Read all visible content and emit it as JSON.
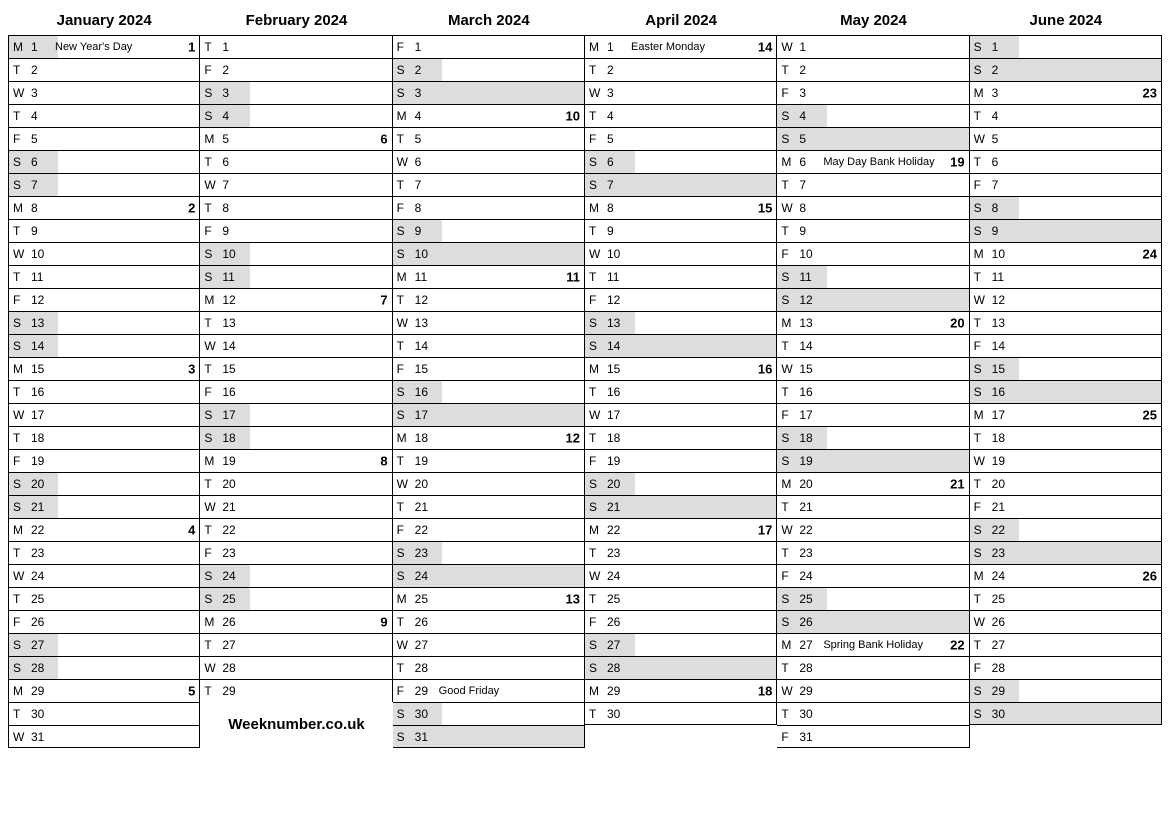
{
  "colors": {
    "weekend_bg": "#ddd",
    "border": "#000",
    "text": "#000"
  },
  "footer": "Weeknumber.co.uk",
  "weekend_partial_width_pct": 26,
  "months": [
    {
      "title": "January 2024",
      "days": [
        {
          "dow": "M",
          "n": 1,
          "holiday": "New Year's Day",
          "week": 1,
          "weekend": "partial"
        },
        {
          "dow": "T",
          "n": 2
        },
        {
          "dow": "W",
          "n": 3
        },
        {
          "dow": "T",
          "n": 4
        },
        {
          "dow": "F",
          "n": 5
        },
        {
          "dow": "S",
          "n": 6,
          "weekend": "partial"
        },
        {
          "dow": "S",
          "n": 7,
          "weekend": "partial"
        },
        {
          "dow": "M",
          "n": 8,
          "week": 2
        },
        {
          "dow": "T",
          "n": 9
        },
        {
          "dow": "W",
          "n": 10
        },
        {
          "dow": "T",
          "n": 11
        },
        {
          "dow": "F",
          "n": 12
        },
        {
          "dow": "S",
          "n": 13,
          "weekend": "partial"
        },
        {
          "dow": "S",
          "n": 14,
          "weekend": "partial"
        },
        {
          "dow": "M",
          "n": 15,
          "week": 3
        },
        {
          "dow": "T",
          "n": 16
        },
        {
          "dow": "W",
          "n": 17
        },
        {
          "dow": "T",
          "n": 18
        },
        {
          "dow": "F",
          "n": 19
        },
        {
          "dow": "S",
          "n": 20,
          "weekend": "partial"
        },
        {
          "dow": "S",
          "n": 21,
          "weekend": "partial"
        },
        {
          "dow": "M",
          "n": 22,
          "week": 4
        },
        {
          "dow": "T",
          "n": 23
        },
        {
          "dow": "W",
          "n": 24
        },
        {
          "dow": "T",
          "n": 25
        },
        {
          "dow": "F",
          "n": 26
        },
        {
          "dow": "S",
          "n": 27,
          "weekend": "partial"
        },
        {
          "dow": "S",
          "n": 28,
          "weekend": "partial"
        },
        {
          "dow": "M",
          "n": 29,
          "week": 5
        },
        {
          "dow": "T",
          "n": 30
        },
        {
          "dow": "W",
          "n": 31
        }
      ]
    },
    {
      "title": "February 2024",
      "days": [
        {
          "dow": "T",
          "n": 1
        },
        {
          "dow": "F",
          "n": 2
        },
        {
          "dow": "S",
          "n": 3,
          "weekend": "partial"
        },
        {
          "dow": "S",
          "n": 4,
          "weekend": "partial"
        },
        {
          "dow": "M",
          "n": 5,
          "week": 6
        },
        {
          "dow": "T",
          "n": 6
        },
        {
          "dow": "W",
          "n": 7
        },
        {
          "dow": "T",
          "n": 8
        },
        {
          "dow": "F",
          "n": 9
        },
        {
          "dow": "S",
          "n": 10,
          "weekend": "partial"
        },
        {
          "dow": "S",
          "n": 11,
          "weekend": "partial"
        },
        {
          "dow": "M",
          "n": 12,
          "week": 7
        },
        {
          "dow": "T",
          "n": 13
        },
        {
          "dow": "W",
          "n": 14
        },
        {
          "dow": "T",
          "n": 15
        },
        {
          "dow": "F",
          "n": 16
        },
        {
          "dow": "S",
          "n": 17,
          "weekend": "partial"
        },
        {
          "dow": "S",
          "n": 18,
          "weekend": "partial"
        },
        {
          "dow": "M",
          "n": 19,
          "week": 8
        },
        {
          "dow": "T",
          "n": 20
        },
        {
          "dow": "W",
          "n": 21
        },
        {
          "dow": "T",
          "n": 22
        },
        {
          "dow": "F",
          "n": 23
        },
        {
          "dow": "S",
          "n": 24,
          "weekend": "partial"
        },
        {
          "dow": "S",
          "n": 25,
          "weekend": "partial"
        },
        {
          "dow": "M",
          "n": 26,
          "week": 9
        },
        {
          "dow": "T",
          "n": 27
        },
        {
          "dow": "W",
          "n": 28
        },
        {
          "dow": "T",
          "n": 29
        }
      ],
      "footer": true
    },
    {
      "title": "March 2024",
      "days": [
        {
          "dow": "F",
          "n": 1
        },
        {
          "dow": "S",
          "n": 2,
          "weekend": "partial"
        },
        {
          "dow": "S",
          "n": 3,
          "weekend": "full"
        },
        {
          "dow": "M",
          "n": 4,
          "week": 10
        },
        {
          "dow": "T",
          "n": 5
        },
        {
          "dow": "W",
          "n": 6
        },
        {
          "dow": "T",
          "n": 7
        },
        {
          "dow": "F",
          "n": 8
        },
        {
          "dow": "S",
          "n": 9,
          "weekend": "partial"
        },
        {
          "dow": "S",
          "n": 10,
          "weekend": "full"
        },
        {
          "dow": "M",
          "n": 11,
          "week": 11
        },
        {
          "dow": "T",
          "n": 12
        },
        {
          "dow": "W",
          "n": 13
        },
        {
          "dow": "T",
          "n": 14
        },
        {
          "dow": "F",
          "n": 15
        },
        {
          "dow": "S",
          "n": 16,
          "weekend": "partial"
        },
        {
          "dow": "S",
          "n": 17,
          "weekend": "full"
        },
        {
          "dow": "M",
          "n": 18,
          "week": 12
        },
        {
          "dow": "T",
          "n": 19
        },
        {
          "dow": "W",
          "n": 20
        },
        {
          "dow": "T",
          "n": 21
        },
        {
          "dow": "F",
          "n": 22
        },
        {
          "dow": "S",
          "n": 23,
          "weekend": "partial"
        },
        {
          "dow": "S",
          "n": 24,
          "weekend": "full"
        },
        {
          "dow": "M",
          "n": 25,
          "week": 13
        },
        {
          "dow": "T",
          "n": 26
        },
        {
          "dow": "W",
          "n": 27
        },
        {
          "dow": "T",
          "n": 28
        },
        {
          "dow": "F",
          "n": 29,
          "holiday": "Good Friday"
        },
        {
          "dow": "S",
          "n": 30,
          "weekend": "partial"
        },
        {
          "dow": "S",
          "n": 31,
          "weekend": "full"
        }
      ]
    },
    {
      "title": "April 2024",
      "days": [
        {
          "dow": "M",
          "n": 1,
          "holiday": "Easter Monday",
          "week": 14
        },
        {
          "dow": "T",
          "n": 2
        },
        {
          "dow": "W",
          "n": 3
        },
        {
          "dow": "T",
          "n": 4
        },
        {
          "dow": "F",
          "n": 5
        },
        {
          "dow": "S",
          "n": 6,
          "weekend": "partial"
        },
        {
          "dow": "S",
          "n": 7,
          "weekend": "full"
        },
        {
          "dow": "M",
          "n": 8,
          "week": 15
        },
        {
          "dow": "T",
          "n": 9
        },
        {
          "dow": "W",
          "n": 10
        },
        {
          "dow": "T",
          "n": 11
        },
        {
          "dow": "F",
          "n": 12
        },
        {
          "dow": "S",
          "n": 13,
          "weekend": "partial"
        },
        {
          "dow": "S",
          "n": 14,
          "weekend": "full"
        },
        {
          "dow": "M",
          "n": 15,
          "week": 16
        },
        {
          "dow": "T",
          "n": 16
        },
        {
          "dow": "W",
          "n": 17
        },
        {
          "dow": "T",
          "n": 18
        },
        {
          "dow": "F",
          "n": 19
        },
        {
          "dow": "S",
          "n": 20,
          "weekend": "partial"
        },
        {
          "dow": "S",
          "n": 21,
          "weekend": "full"
        },
        {
          "dow": "M",
          "n": 22,
          "week": 17
        },
        {
          "dow": "T",
          "n": 23
        },
        {
          "dow": "W",
          "n": 24
        },
        {
          "dow": "T",
          "n": 25
        },
        {
          "dow": "F",
          "n": 26
        },
        {
          "dow": "S",
          "n": 27,
          "weekend": "partial"
        },
        {
          "dow": "S",
          "n": 28,
          "weekend": "full"
        },
        {
          "dow": "M",
          "n": 29,
          "week": 18
        },
        {
          "dow": "T",
          "n": 30
        }
      ]
    },
    {
      "title": "May 2024",
      "days": [
        {
          "dow": "W",
          "n": 1
        },
        {
          "dow": "T",
          "n": 2
        },
        {
          "dow": "F",
          "n": 3
        },
        {
          "dow": "S",
          "n": 4,
          "weekend": "partial"
        },
        {
          "dow": "S",
          "n": 5,
          "weekend": "full"
        },
        {
          "dow": "M",
          "n": 6,
          "holiday": "May Day Bank Holiday",
          "week": 19
        },
        {
          "dow": "T",
          "n": 7
        },
        {
          "dow": "W",
          "n": 8
        },
        {
          "dow": "T",
          "n": 9
        },
        {
          "dow": "F",
          "n": 10
        },
        {
          "dow": "S",
          "n": 11,
          "weekend": "partial"
        },
        {
          "dow": "S",
          "n": 12,
          "weekend": "full"
        },
        {
          "dow": "M",
          "n": 13,
          "week": 20
        },
        {
          "dow": "T",
          "n": 14
        },
        {
          "dow": "W",
          "n": 15
        },
        {
          "dow": "T",
          "n": 16
        },
        {
          "dow": "F",
          "n": 17
        },
        {
          "dow": "S",
          "n": 18,
          "weekend": "partial"
        },
        {
          "dow": "S",
          "n": 19,
          "weekend": "full"
        },
        {
          "dow": "M",
          "n": 20,
          "week": 21
        },
        {
          "dow": "T",
          "n": 21
        },
        {
          "dow": "W",
          "n": 22
        },
        {
          "dow": "T",
          "n": 23
        },
        {
          "dow": "F",
          "n": 24
        },
        {
          "dow": "S",
          "n": 25,
          "weekend": "partial"
        },
        {
          "dow": "S",
          "n": 26,
          "weekend": "full"
        },
        {
          "dow": "M",
          "n": 27,
          "holiday": "Spring Bank Holiday",
          "week": 22
        },
        {
          "dow": "T",
          "n": 28
        },
        {
          "dow": "W",
          "n": 29
        },
        {
          "dow": "T",
          "n": 30
        },
        {
          "dow": "F",
          "n": 31
        }
      ]
    },
    {
      "title": "June 2024",
      "days": [
        {
          "dow": "S",
          "n": 1,
          "weekend": "partial"
        },
        {
          "dow": "S",
          "n": 2,
          "weekend": "full"
        },
        {
          "dow": "M",
          "n": 3,
          "week": 23
        },
        {
          "dow": "T",
          "n": 4
        },
        {
          "dow": "W",
          "n": 5
        },
        {
          "dow": "T",
          "n": 6
        },
        {
          "dow": "F",
          "n": 7
        },
        {
          "dow": "S",
          "n": 8,
          "weekend": "partial"
        },
        {
          "dow": "S",
          "n": 9,
          "weekend": "full"
        },
        {
          "dow": "M",
          "n": 10,
          "week": 24
        },
        {
          "dow": "T",
          "n": 11
        },
        {
          "dow": "W",
          "n": 12
        },
        {
          "dow": "T",
          "n": 13
        },
        {
          "dow": "F",
          "n": 14
        },
        {
          "dow": "S",
          "n": 15,
          "weekend": "partial"
        },
        {
          "dow": "S",
          "n": 16,
          "weekend": "full"
        },
        {
          "dow": "M",
          "n": 17,
          "week": 25
        },
        {
          "dow": "T",
          "n": 18
        },
        {
          "dow": "W",
          "n": 19
        },
        {
          "dow": "T",
          "n": 20
        },
        {
          "dow": "F",
          "n": 21
        },
        {
          "dow": "S",
          "n": 22,
          "weekend": "partial"
        },
        {
          "dow": "S",
          "n": 23,
          "weekend": "full"
        },
        {
          "dow": "M",
          "n": 24,
          "week": 26
        },
        {
          "dow": "T",
          "n": 25
        },
        {
          "dow": "W",
          "n": 26
        },
        {
          "dow": "T",
          "n": 27
        },
        {
          "dow": "F",
          "n": 28
        },
        {
          "dow": "S",
          "n": 29,
          "weekend": "partial"
        },
        {
          "dow": "S",
          "n": 30,
          "weekend": "full"
        }
      ]
    }
  ]
}
